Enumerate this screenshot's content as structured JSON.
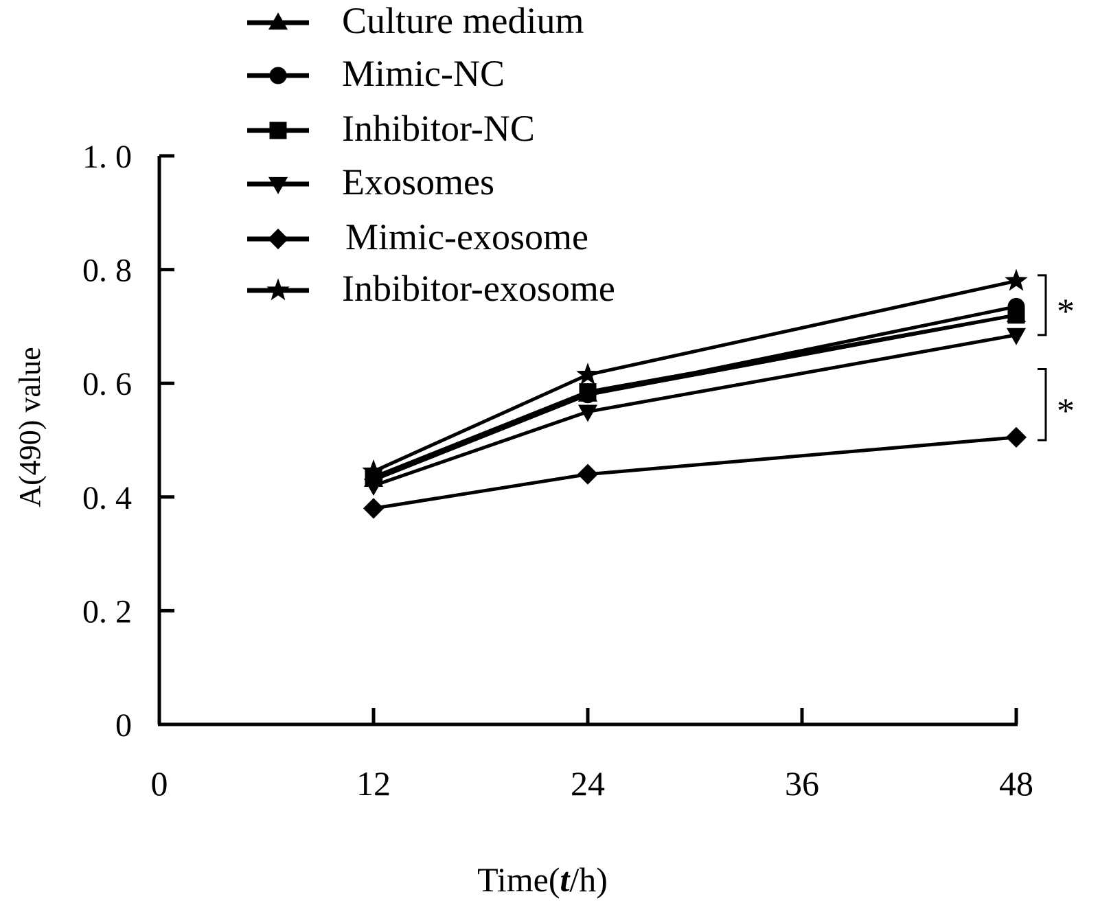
{
  "chart_data": {
    "type": "line",
    "xlabel_prefix": "Time(",
    "xlabel_var": "t",
    "xlabel_suffix": "/h)",
    "ylabel": "A(490)  value",
    "x": [
      12,
      24,
      48
    ],
    "xlim": [
      0,
      48
    ],
    "ylim": [
      0,
      1.0
    ],
    "xticks": [
      0,
      12,
      24,
      36,
      48
    ],
    "xtick_labels": [
      "0",
      "12",
      "24",
      "36",
      "48"
    ],
    "yticks": [
      0,
      0.2,
      0.4,
      0.6,
      0.8,
      1.0
    ],
    "ytick_labels": [
      "0",
      "0. 2",
      "0. 4",
      "0. 6",
      "0. 8",
      "1. 0"
    ],
    "grid": false,
    "legend_position": "top-left",
    "series": [
      {
        "name": "Culture medium",
        "marker": "triangle-up",
        "values": [
          0.43,
          0.58,
          0.72
        ]
      },
      {
        "name": "Mimic-NC",
        "marker": "circle",
        "values": [
          0.43,
          0.58,
          0.735
        ]
      },
      {
        "name": "Inhibitor-NC",
        "marker": "square",
        "values": [
          0.435,
          0.585,
          0.72
        ]
      },
      {
        "name": "Exosomes",
        "marker": "triangle-down",
        "values": [
          0.42,
          0.55,
          0.685
        ]
      },
      {
        "name": "Mimic-exosome",
        "marker": "diamond",
        "values": [
          0.38,
          0.44,
          0.505
        ]
      },
      {
        "name": "Inbibitor-exosome",
        "marker": "star",
        "values": [
          0.445,
          0.615,
          0.78
        ]
      }
    ],
    "annotations": [
      {
        "text": "*",
        "from": 0.685,
        "to": 0.79
      },
      {
        "text": "*",
        "from": 0.5,
        "to": 0.625
      }
    ],
    "line_color": "#000000"
  }
}
